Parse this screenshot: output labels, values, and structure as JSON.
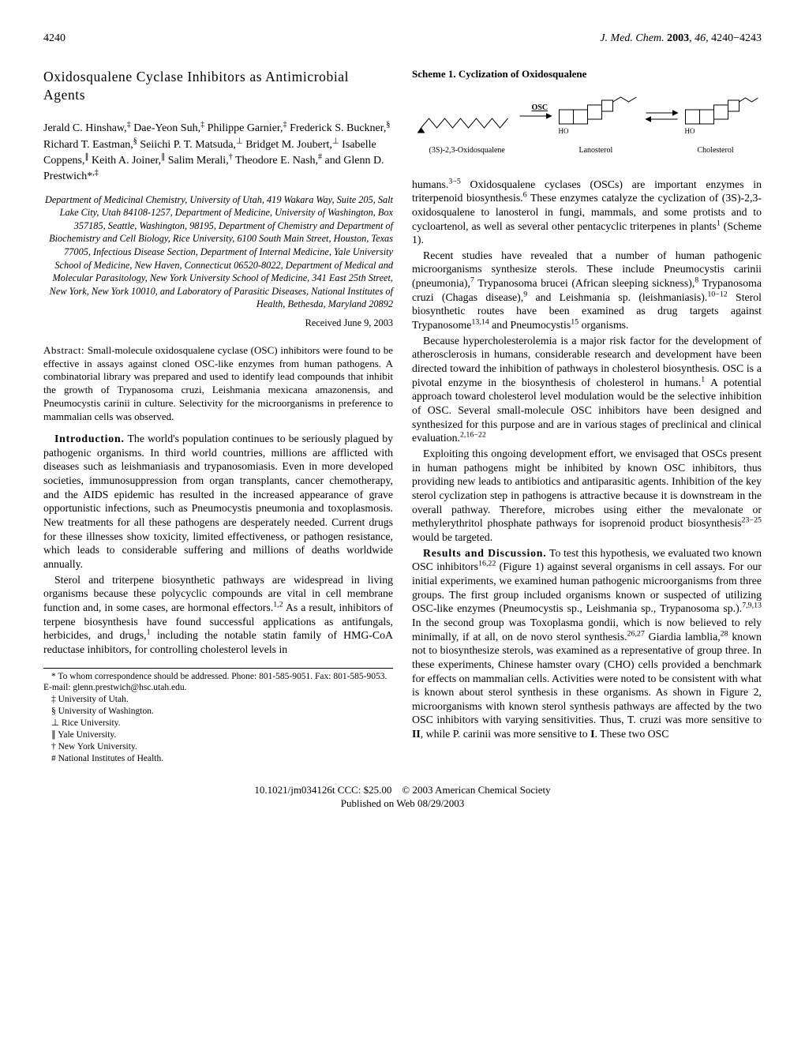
{
  "header": {
    "page": "4240",
    "journal": "J. Med. Chem.",
    "year": "2003",
    "vol": "46,",
    "pages": "4240−4243"
  },
  "title": "Oxidosqualene Cyclase Inhibitors as Antimicrobial Agents",
  "authors_html": "Jerald C. Hinshaw,<sup>‡</sup> Dae-Yeon Suh,<sup>‡</sup> Philippe Garnier,<sup>‡</sup> Frederick S. Buckner,<sup>§</sup> Richard T. Eastman,<sup>§</sup> Seiichi P. T. Matsuda,<sup>⊥</sup> Bridget M. Joubert,<sup>⊥</sup> Isabelle Coppens,<sup>∥</sup> Keith A. Joiner,<sup>∥</sup> Salim Merali,<sup>†</sup> Theodore E. Nash,<sup>#</sup> and Glenn D. Prestwich*<sup>,‡</sup>",
  "affiliations": "Department of Medicinal Chemistry, University of Utah, 419 Wakara Way, Suite 205, Salt Lake City, Utah 84108-1257, Department of Medicine, University of Washington, Box 357185, Seattle, Washington, 98195, Department of Chemistry and Department of Biochemistry and Cell Biology, Rice University, 6100 South Main Street, Houston, Texas 77005, Infectious Disease Section, Department of Internal Medicine, Yale University School of Medicine, New Haven, Connecticut 06520-8022, Department of Medical and Molecular Parasitology, New York University School of Medicine, 341 East 25th Street, New York, New York 10010, and Laboratory of Parasitic Diseases, National Institutes of Health, Bethesda, Maryland 20892",
  "received": "Received June 9, 2003",
  "abstract_lead": "Abstract:",
  "abstract": "Small-molecule oxidosqualene cyclase (OSC) inhibitors were found to be effective in assays against cloned OSC-like enzymes from human pathogens. A combinatorial library was prepared and used to identify lead compounds that inhibit the growth of Trypanosoma cruzi, Leishmania mexicana amazonensis, and Pneumocystis carinii in culture. Selectivity for the microorganisms in preference to mammalian cells was observed.",
  "intro_lead": "Introduction.",
  "para1": "The world's population continues to be seriously plagued by pathogenic organisms. In third world countries, millions are afflicted with diseases such as leishmaniasis and trypanosomiasis. Even in more developed societies, immunosuppression from organ transplants, cancer chemotherapy, and the AIDS epidemic has resulted in the increased appearance of grave opportunistic infections, such as Pneumocystis pneumonia and toxoplasmosis. New treatments for all these pathogens are desperately needed. Current drugs for these illnesses show toxicity, limited effectiveness, or pathogen resistance, which leads to considerable suffering and millions of deaths worldwide annually.",
  "para2_html": "Sterol and triterpene biosynthetic pathways are widespread in living organisms because these polycyclic compounds are vital in cell membrane function and, in some cases, are hormonal effectors.<sup>1,2</sup> As a result, inhibitors of terpene biosynthesis have found successful applications as antifungals, herbicides, and drugs,<sup>1</sup> including the notable statin family of HMG-CoA reductase inhibitors, for controlling cholesterol levels in",
  "footnotes": {
    "corr": "* To whom correspondence should be addressed. Phone: 801-585-9051. Fax: 801-585-9053. E-mail: glenn.prestwich@hsc.utah.edu.",
    "a": "‡ University of Utah.",
    "b": "§ University of Washington.",
    "c": "⊥ Rice University.",
    "d": "∥ Yale University.",
    "e": "† New York University.",
    "f": "# National Institutes of Health."
  },
  "scheme_caption": "Scheme 1. Cyclization of Oxidosqualene",
  "scheme_labels": {
    "a": "(3S)-2,3-Oxidosqualene",
    "b": "Lanosterol",
    "c": "Cholesterol",
    "enzyme": "OSC"
  },
  "rpara1_html": "humans.<sup>3−5</sup> Oxidosqualene cyclases (OSCs) are important enzymes in triterpenoid biosynthesis.<sup>6</sup> These enzymes catalyze the cyclization of (3S)-2,3-oxidosqualene to lanosterol in fungi, mammals, and some protists and to cycloartenol, as well as several other pentacyclic triterpenes in plants<sup>1</sup> (Scheme 1).",
  "rpara2_html": "Recent studies have revealed that a number of human pathogenic microorganisms synthesize sterols. These include Pneumocystis carinii (pneumonia),<sup>7</sup> Trypanosoma brucei (African sleeping sickness),<sup>8</sup> Trypanosoma cruzi (Chagas disease),<sup>9</sup> and Leishmania sp. (leishmaniasis).<sup>10−12</sup> Sterol biosynthetic routes have been examined as drug targets against Trypanosome<sup>13,14</sup> and Pneumocystis<sup>15</sup> organisms.",
  "rpara3_html": "Because hypercholesterolemia is a major risk factor for the development of atherosclerosis in humans, considerable research and development have been directed toward the inhibition of pathways in cholesterol biosynthesis. OSC is a pivotal enzyme in the biosynthesis of cholesterol in humans.<sup>1</sup> A potential approach toward cholesterol level modulation would be the selective inhibition of OSC. Several small-molecule OSC inhibitors have been designed and synthesized for this purpose and are in various stages of preclinical and clinical evaluation.<sup>2,16−22</sup>",
  "rpara4_html": "Exploiting this ongoing development effort, we envisaged that OSCs present in human pathogens might be inhibited by known OSC inhibitors, thus providing new leads to antibiotics and antiparasitic agents. Inhibition of the key sterol cyclization step in pathogens is attractive because it is downstream in the overall pathway. Therefore, microbes using either the mevalonate or methylerythritol phosphate pathways for isoprenoid product biosynthesis<sup>23−25</sup> would be targeted.",
  "results_lead": "Results and Discussion.",
  "rpara5_html": "To test this hypothesis, we evaluated two known OSC inhibitors<sup>16,22</sup> (Figure 1) against several organisms in cell assays. For our initial experiments, we examined human pathogenic microorganisms from three groups. The first group included organisms known or suspected of utilizing OSC-like enzymes (Pneumocystis sp., Leishmania sp., Trypanosoma sp.).<sup>7,9,13</sup> In the second group was Toxoplasma gondii, which is now believed to rely minimally, if at all, on de novo sterol synthesis.<sup>26,27</sup> Giardia lamblia,<sup>28</sup> known not to biosynthesize sterols, was examined as a representative of group three. In these experiments, Chinese hamster ovary (CHO) cells provided a benchmark for effects on mammalian cells. Activities were noted to be consistent with what is known about sterol synthesis in these organisms. As shown in Figure 2, microorganisms with known sterol synthesis pathways are affected by the two OSC inhibitors with varying sensitivities. Thus, T. cruzi was more sensitive to <b>II</b>, while P. carinii was more sensitive to <b>I</b>. These two OSC",
  "doi_line1": "10.1021/jm034126t CCC: $25.00 © 2003 American Chemical Society",
  "doi_line2": "Published on Web 08/29/2003"
}
